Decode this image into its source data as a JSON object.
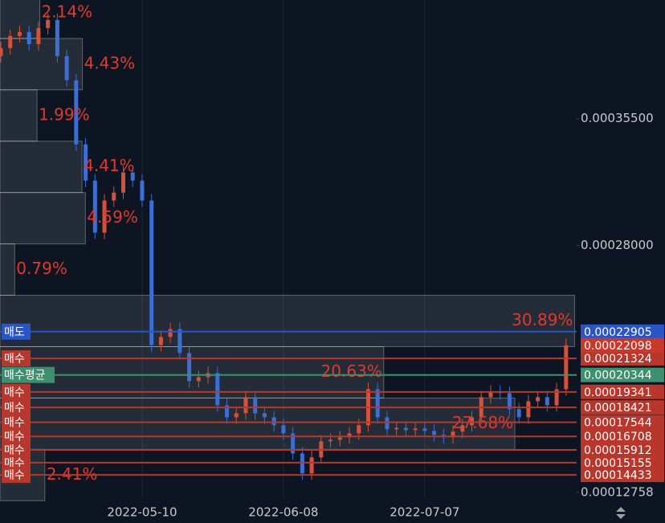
{
  "chart_data": {
    "type": "candlestick",
    "categories": [
      null,
      null,
      null,
      null,
      null,
      null,
      null,
      null,
      null,
      null,
      null,
      null,
      null,
      null,
      null,
      "2022-05-10",
      null,
      null,
      null,
      null,
      null,
      null,
      null,
      null,
      null,
      null,
      null,
      null,
      null,
      null,
      "2022-06-08",
      null,
      null,
      null,
      null,
      null,
      null,
      null,
      null,
      null,
      null,
      null,
      null,
      null,
      null,
      "2022-07-07",
      null,
      null,
      null,
      null,
      null,
      null,
      null,
      null,
      null,
      null,
      null,
      null,
      null,
      null,
      null
    ],
    "open": [
      0.000392,
      0.0003968,
      0.0004039,
      0.0004063,
      0.0003991,
      0.0004086,
      0.0004134,
      0.000392,
      0.0003778,
      0.0003398,
      0.0003184,
      0.0002876,
      0.0003066,
      0.0003113,
      0.0003232,
      0.0003184,
      0.0003066,
      0.0002211,
      0.0002259,
      0.0002306,
      0.0002164,
      0.0001998,
      0.0002021,
      0.0002045,
      0.0001855,
      0.0001784,
      0.0001808,
      0.0001903,
      0.0001808,
      0.0001784,
      0.0001737,
      0.0001689,
      0.000157,
      0.0001452,
      0.0001547,
      0.0001642,
      0.0001651,
      0.0001665,
      0.0001689,
      0.0001737,
      0.000195,
      0.0001784,
      0.0001713,
      0.0001722,
      0.0001708,
      0.0001718,
      0.0001703,
      0.000168,
      0.0001665,
      0.0001699,
      0.0001737,
      0.0001784,
      0.0001903,
      0.0001936,
      0.0001927,
      0.0001832,
      0.0001784,
      0.0001879,
      0.0001903,
      0.0001855,
      0.000195
    ],
    "high": [
      0.0004006,
      0.0004077,
      0.0004101,
      0.0004101,
      0.0004124,
      0.0004172,
      0.0004172,
      0.0003958,
      0.0003816,
      0.0003436,
      0.0003222,
      0.0003104,
      0.0003151,
      0.000327,
      0.000327,
      0.0003222,
      0.0003104,
      0.0002297,
      0.0002344,
      0.0002344,
      0.0002202,
      0.0002059,
      0.0002083,
      0.0002083,
      0.0001893,
      0.0001846,
      0.0001941,
      0.0001941,
      0.0001846,
      0.0001822,
      0.0001775,
      0.0001727,
      0.0001608,
      0.0001585,
      0.000168,
      0.0001689,
      0.0001703,
      0.0001727,
      0.0001775,
      0.0001988,
      0.0001988,
      0.0001822,
      0.000176,
      0.000176,
      0.0001756,
      0.0001756,
      0.0001741,
      0.0001718,
      0.0001737,
      0.0001775,
      0.0001822,
      0.0001941,
      0.0001974,
      0.0001974,
      0.0001965,
      0.000187,
      0.0001917,
      0.0001941,
      0.0001941,
      0.0001988,
      0.0002249
    ],
    "low": [
      0.0003882,
      0.000393,
      0.0004001,
      0.0003953,
      0.0003953,
      0.0004048,
      0.0003882,
      0.000374,
      0.000336,
      0.0003146,
      0.0002838,
      0.0002838,
      0.0003028,
      0.0003075,
      0.0003146,
      0.0003028,
      0.0002173,
      0.0002173,
      0.0002221,
      0.0002126,
      0.000196,
      0.000196,
      0.0001983,
      0.0001817,
      0.0001746,
      0.0001746,
      0.000177,
      0.000177,
      0.0001746,
      0.0001699,
      0.0001651,
      0.0001532,
      0.0001414,
      0.0001414,
      0.0001509,
      0.0001604,
      0.0001613,
      0.0001627,
      0.0001651,
      0.0001699,
      0.0001746,
      0.0001675,
      0.0001675,
      0.000167,
      0.000167,
      0.0001665,
      0.0001642,
      0.0001627,
      0.0001627,
      0.0001661,
      0.0001699,
      0.0001746,
      0.0001865,
      0.0001889,
      0.0001794,
      0.0001746,
      0.0001746,
      0.0001841,
      0.0001817,
      0.0001817,
      0.0001912
    ],
    "close": [
      0.0003968,
      0.0004039,
      0.0004063,
      0.0003991,
      0.0004086,
      0.0004134,
      0.000392,
      0.0003778,
      0.0003398,
      0.0003184,
      0.0002876,
      0.0003066,
      0.0003113,
      0.0003232,
      0.0003184,
      0.0003066,
      0.0002211,
      0.0002259,
      0.0002306,
      0.0002164,
      0.0001998,
      0.0002021,
      0.0002045,
      0.0001855,
      0.0001784,
      0.0001808,
      0.0001903,
      0.0001808,
      0.0001784,
      0.0001737,
      0.0001689,
      0.000157,
      0.0001452,
      0.0001547,
      0.0001642,
      0.0001651,
      0.0001665,
      0.0001689,
      0.0001737,
      0.000195,
      0.0001784,
      0.0001713,
      0.0001722,
      0.0001708,
      0.0001718,
      0.0001703,
      0.000168,
      0.0001665,
      0.0001699,
      0.0001737,
      0.0001784,
      0.0001903,
      0.0001936,
      0.0001927,
      0.0001832,
      0.0001784,
      0.0001879,
      0.0001903,
      0.0001855,
      0.000195,
      0.00022098
    ],
    "up_color": "#d4513c",
    "down_color": "#3b6fd6",
    "ylim": [
      0.0001306,
      0.0004252
    ],
    "yticks": [
      {
        "value": 0.000355,
        "label": "0.00035500"
      },
      {
        "value": 0.00028,
        "label": "0.00028000"
      },
      0.00012758
    ],
    "grid": true,
    "last_price": 0.00022098,
    "last_price_color": "#c8392c",
    "price_lines": [
      {
        "label": "매도",
        "value": 0.00022905,
        "color": "#2a55c6"
      },
      {
        "label": "매수",
        "value": 0.00021324,
        "color": "#b8372c"
      },
      {
        "label": "매수평균",
        "value": 0.00020344,
        "color": "#3e8f6e"
      },
      {
        "label": "매수",
        "value": 0.00019341,
        "color": "#b8372c"
      },
      {
        "label": "매수",
        "value": 0.00018421,
        "color": "#b8372c"
      },
      {
        "label": "매수",
        "value": 0.00017544,
        "color": "#b8372c"
      },
      {
        "label": "매수",
        "value": 0.00016708,
        "color": "#b8372c"
      },
      {
        "label": "매수",
        "value": 0.00015912,
        "color": "#b8372c"
      },
      {
        "label": "매수",
        "value": 0.00015155,
        "color": "#b8372c"
      },
      {
        "label": "매수",
        "value": 0.00014433,
        "color": "#b8372c"
      }
    ],
    "volume_profile": {
      "bins": [
        0.00012904,
        0.00015942,
        0.0001898,
        0.00022018,
        0.00025056,
        0.00028094,
        0.00031132,
        0.0003417,
        0.00037208,
        0.00040246,
        0.00043285
      ],
      "values": [
        2.41,
        27.68,
        20.63,
        30.89,
        0.79,
        4.59,
        4.41,
        1.99,
        4.43,
        2.14
      ],
      "value_labels": [
        "2.41%",
        "27.68%",
        "20.63%",
        "30.89%",
        "0.79%",
        "4.59%",
        "4.41%",
        "1.99%",
        "4.43%",
        "2.14%"
      ],
      "xlim": [
        0,
        31
      ]
    }
  }
}
